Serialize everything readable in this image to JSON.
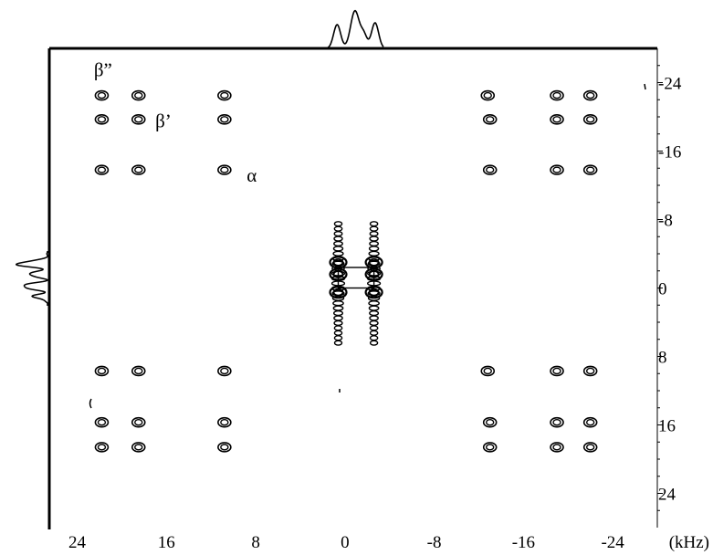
{
  "chart_data": {
    "type": "contour",
    "title": "",
    "x_unit": "(kHz)",
    "xlim": [
      26.5,
      -28
    ],
    "ylim": [
      -28,
      28
    ],
    "x_ticks": [
      24,
      16,
      8,
      0,
      -8,
      -16,
      -24
    ],
    "y_ticks": [
      -24,
      -16,
      -8,
      0,
      8,
      16,
      24
    ],
    "x_tick_labels": [
      "24",
      "16",
      "8",
      "0",
      "-8",
      "-16",
      "-24"
    ],
    "y_tick_labels": [
      "-24",
      "-16",
      "-8",
      "0",
      "8",
      "16",
      "24"
    ],
    "peak_labels": [
      {
        "text": "β”",
        "x": 22.5,
        "y": -25.5
      },
      {
        "text": "β’",
        "x": 17.0,
        "y": -19.5
      },
      {
        "text": "α",
        "x": 8.8,
        "y": -13.2
      }
    ],
    "peaks": [
      {
        "x": 21.8,
        "y": -22.5
      },
      {
        "x": 18.5,
        "y": -22.5
      },
      {
        "x": 10.8,
        "y": -22.5
      },
      {
        "x": -12.8,
        "y": -22.5
      },
      {
        "x": -19.0,
        "y": -22.5
      },
      {
        "x": -22.0,
        "y": -22.5
      },
      {
        "x": 21.8,
        "y": -19.7
      },
      {
        "x": 18.5,
        "y": -19.7
      },
      {
        "x": 10.8,
        "y": -19.7
      },
      {
        "x": -13.0,
        "y": -19.7
      },
      {
        "x": -19.0,
        "y": -19.7
      },
      {
        "x": -22.0,
        "y": -19.7
      },
      {
        "x": 21.8,
        "y": -13.8
      },
      {
        "x": 18.5,
        "y": -13.8
      },
      {
        "x": 10.8,
        "y": -13.8
      },
      {
        "x": -13.0,
        "y": -13.8
      },
      {
        "x": -19.0,
        "y": -13.8
      },
      {
        "x": -22.0,
        "y": -13.8
      },
      {
        "x": 21.8,
        "y": 9.7
      },
      {
        "x": 18.5,
        "y": 9.7
      },
      {
        "x": 10.8,
        "y": 9.7
      },
      {
        "x": -12.8,
        "y": 9.7
      },
      {
        "x": -19.0,
        "y": 9.7
      },
      {
        "x": -22.0,
        "y": 9.7
      },
      {
        "x": 21.8,
        "y": 15.7
      },
      {
        "x": 18.5,
        "y": 15.7
      },
      {
        "x": 10.8,
        "y": 15.7
      },
      {
        "x": -13.0,
        "y": 15.7
      },
      {
        "x": -19.0,
        "y": 15.7
      },
      {
        "x": -22.0,
        "y": 15.7
      },
      {
        "x": 21.8,
        "y": 18.6
      },
      {
        "x": 18.5,
        "y": 18.6
      },
      {
        "x": 10.8,
        "y": 18.6
      },
      {
        "x": -13.0,
        "y": 18.6
      },
      {
        "x": -19.0,
        "y": 18.6
      },
      {
        "x": -22.0,
        "y": 18.6
      }
    ],
    "center_columns_x": [
      0.6,
      -2.6
    ],
    "center_y_range": [
      -7.5,
      6.5
    ],
    "center_strong_y": [
      -3.0,
      -1.6,
      0.5
    ]
  }
}
